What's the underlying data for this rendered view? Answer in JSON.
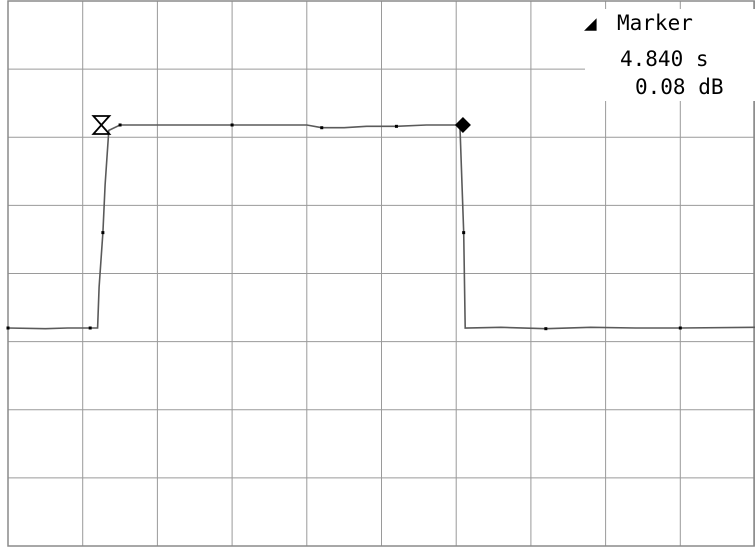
{
  "marker_readout": {
    "label": "Marker",
    "delta_symbol": "◢",
    "time": "4.840 s",
    "level": "0.08 dB"
  },
  "chart_data": {
    "type": "line",
    "title": "",
    "xlabel": "",
    "ylabel": "",
    "grid": true,
    "grid_divisions": {
      "x": 10,
      "y": 8
    },
    "xlim": [
      0,
      10
    ],
    "ylim": [
      0,
      8
    ],
    "series": [
      {
        "color": "#000000",
        "points": [
          [
            0.0,
            3.2
          ],
          [
            0.5,
            3.19
          ],
          [
            0.8,
            3.2
          ],
          [
            1.1,
            3.2
          ],
          [
            1.2,
            3.2
          ],
          [
            1.22,
            3.8
          ],
          [
            1.27,
            4.6
          ],
          [
            1.3,
            5.3
          ],
          [
            1.35,
            6.1
          ],
          [
            1.5,
            6.18
          ],
          [
            2.0,
            6.18
          ],
          [
            2.5,
            6.18
          ],
          [
            3.0,
            6.18
          ],
          [
            3.5,
            6.18
          ],
          [
            4.0,
            6.18
          ],
          [
            4.2,
            6.14
          ],
          [
            4.5,
            6.14
          ],
          [
            4.8,
            6.16
          ],
          [
            5.2,
            6.16
          ],
          [
            5.6,
            6.18
          ],
          [
            6.05,
            6.18
          ],
          [
            6.1,
            4.6
          ],
          [
            6.12,
            3.2
          ],
          [
            6.6,
            3.21
          ],
          [
            7.2,
            3.19
          ],
          [
            7.8,
            3.21
          ],
          [
            8.4,
            3.2
          ],
          [
            9.0,
            3.2
          ],
          [
            10.0,
            3.21
          ]
        ]
      }
    ],
    "markers": [
      {
        "name": "reference",
        "symbol": "hourglass",
        "x": 1.25,
        "y": 6.18
      },
      {
        "name": "active",
        "symbol": "filled-diamond",
        "x": 6.09,
        "y": 6.18
      }
    ]
  }
}
